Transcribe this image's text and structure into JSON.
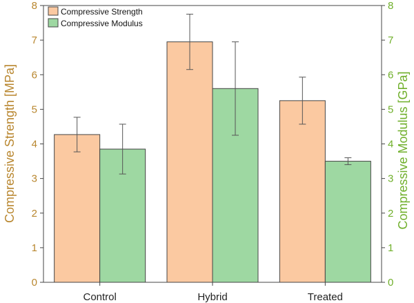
{
  "chart_data": {
    "type": "bar",
    "categories": [
      "Control",
      "Hybrid",
      "Treated"
    ],
    "series": [
      {
        "name": "Compressive Strength",
        "axis": "left",
        "color": "#FBC9A1",
        "values": [
          4.27,
          6.95,
          5.25
        ],
        "errors": [
          0.5,
          0.8,
          0.68
        ]
      },
      {
        "name": "Compressive Modulus",
        "axis": "right",
        "color": "#9ED8A2",
        "values": [
          3.85,
          5.6,
          3.5
        ],
        "errors": [
          0.72,
          1.35,
          0.1
        ]
      }
    ],
    "ylabel_left": "Compressive Strength [MPa]",
    "ylabel_right": "Compressive Modulus [GPa]",
    "ylim_left": [
      0,
      8
    ],
    "ylim_right": [
      0,
      8
    ],
    "yticks_left": [
      0,
      1,
      2,
      3,
      4,
      5,
      6,
      7,
      8
    ],
    "yticks_right": [
      0,
      1,
      2,
      3,
      4,
      5,
      6,
      7,
      8
    ],
    "left_axis_color": "#B8862E",
    "right_axis_color": "#6FAF2A",
    "legend_position": "top-left",
    "grid": false
  }
}
